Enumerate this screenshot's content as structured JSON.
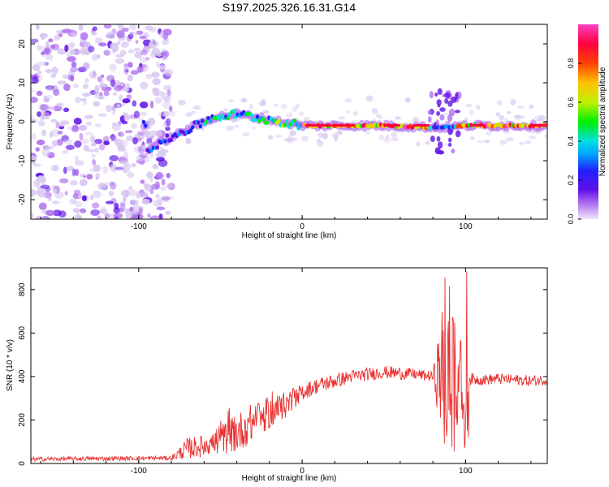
{
  "title": "S197.2025.326.16.31.G14",
  "chart_data": [
    {
      "type": "heatmap",
      "title": "S197.2025.326.16.31.G14",
      "xlabel": "Height of straight line (km)",
      "ylabel": "Frequency (Hz)",
      "xlim": [
        -166,
        150
      ],
      "ylim": [
        -25,
        25
      ],
      "xticks": [
        -100,
        0,
        100
      ],
      "yticks": [
        -20,
        -10,
        0,
        10,
        20
      ],
      "xtick_labels": [
        "-100",
        "0",
        "100"
      ],
      "ytick_labels": [
        "-20",
        "-10",
        "0",
        "10",
        "20"
      ],
      "colorbar": {
        "label": "Normalized spectral amplitude",
        "range": [
          0,
          1
        ],
        "ticks": [
          0.0,
          0.2,
          0.4,
          0.6,
          0.8
        ],
        "tick_labels": [
          "0.0",
          "0.2",
          "0.4",
          "0.6",
          "0.8"
        ],
        "colors": [
          "#d8c8f0",
          "#b070f0",
          "#6010e8",
          "#2020ff",
          "#00a0ff",
          "#00e0e0",
          "#00f000",
          "#c0f000",
          "#ffc000",
          "#ff4000",
          "#ff0040",
          "#ff40c0"
        ]
      },
      "ridge": {
        "description_points": [
          {
            "x": -95,
            "f": -7
          },
          {
            "x": -80,
            "f": -4
          },
          {
            "x": -70,
            "f": -2
          },
          {
            "x": -55,
            "f": 1
          },
          {
            "x": -40,
            "f": 2
          },
          {
            "x": -20,
            "f": 0.5
          },
          {
            "x": 0,
            "f": -1
          },
          {
            "x": 50,
            "f": -1
          },
          {
            "x": 85,
            "f": -1.5
          },
          {
            "x": 100,
            "f": -1
          },
          {
            "x": 150,
            "f": -1
          }
        ]
      }
    },
    {
      "type": "line",
      "xlabel": "Height of straight line (km)",
      "ylabel": "SNR (10 * v/v)",
      "xlim": [
        -166,
        150
      ],
      "ylim": [
        0,
        900
      ],
      "xticks": [
        -100,
        0,
        100
      ],
      "yticks": [
        0,
        200,
        400,
        600,
        800
      ],
      "xtick_labels": [
        "-100",
        "0",
        "100"
      ],
      "ytick_labels": [
        "0",
        "200",
        "400",
        "600",
        "800"
      ],
      "color": "#e83030",
      "series": [
        {
          "name": "SNR",
          "envelope_x": [
            -166,
            -80,
            -70,
            -60,
            -50,
            -40,
            -30,
            -20,
            -10,
            0,
            10,
            20,
            30,
            40,
            50,
            60,
            70,
            80,
            88,
            92,
            96,
            100,
            110,
            120,
            130,
            140,
            150
          ],
          "envelope_mean": [
            20,
            25,
            70,
            80,
            110,
            140,
            190,
            230,
            270,
            330,
            360,
            380,
            400,
            410,
            420,
            415,
            410,
            400,
            420,
            420,
            420,
            390,
            385,
            390,
            385,
            380,
            385
          ],
          "envelope_amp": [
            10,
            10,
            50,
            50,
            70,
            90,
            90,
            70,
            60,
            40,
            35,
            35,
            30,
            30,
            30,
            30,
            25,
            25,
            420,
            450,
            400,
            30,
            25,
            25,
            25,
            25,
            25
          ]
        }
      ]
    }
  ]
}
